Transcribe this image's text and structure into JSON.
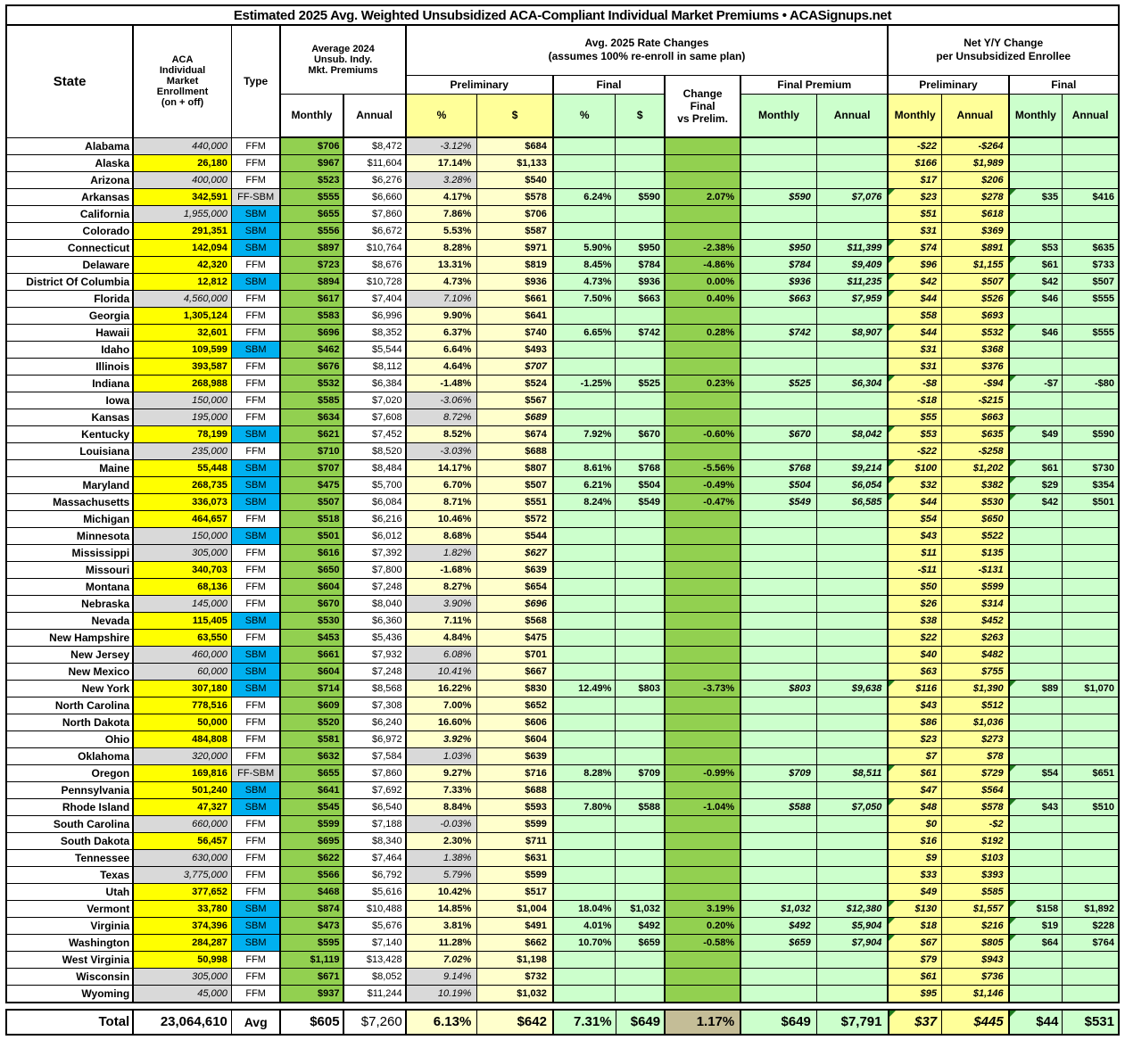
{
  "title": "Estimated 2025 Avg. Weighted Unsubsidized ACA-Compliant Individual Market Premiums • ACASignups.net",
  "headers": {
    "state": "State",
    "enrollment": "ACA\nIndividual\nMarket\nEnrollment\n(on + off)",
    "type": "Type",
    "avg2024": "Average 2024\nUnsub. Indy.\nMkt. Premiums",
    "rate_changes": "Avg. 2025 Rate Changes\n(assumes 100% re-enroll in same plan)",
    "net_yy": "Net Y/Y Change\nper Unsubsidized Enrollee",
    "preliminary": "Preliminary",
    "final": "Final",
    "final_premium": "Final Premium",
    "change_final": "Change\nFinal\nvs Prelim.",
    "monthly": "Monthly",
    "annual": "Annual",
    "pct": "%",
    "dollar": "$"
  },
  "colors": {
    "actual_yellow": "#FFFF00",
    "pale_yellow": "#FFFFCC",
    "mid_yellow": "#FFFF99",
    "pale_green": "#CCFFCC",
    "medium_green": "#92D050",
    "sbm_blue": "#00B0F0",
    "estimate_gray": "#D9D9D9",
    "total_change_tan": "#C4BD97",
    "note_triangle_green": "#1e7a1e"
  },
  "rows": [
    {
      "state": "Alabama",
      "enroll": "440,000",
      "est": true,
      "type": "FFM",
      "m24": "$706",
      "a24": "$8,472",
      "pp": "-3.12%",
      "pps": "g",
      "pd": "$684",
      "npm": "-$22",
      "npa": "-$264"
    },
    {
      "state": "Alaska",
      "enroll": "26,180",
      "type": "FFM",
      "m24": "$967",
      "a24": "$11,604",
      "pp": "17.14%",
      "pps": "b",
      "pd": "$1,133",
      "npm": "$166",
      "npa": "$1,989"
    },
    {
      "state": "Arizona",
      "enroll": "400,000",
      "est": true,
      "type": "FFM",
      "m24": "$523",
      "a24": "$6,276",
      "pp": "3.28%",
      "pps": "g",
      "pd": "$540",
      "npm": "$17",
      "npa": "$206"
    },
    {
      "state": "Arkansas",
      "enroll": "342,591",
      "type": "FF-SBM",
      "m24": "$555",
      "a24": "$6,660",
      "pp": "4.17%",
      "pps": "b",
      "pd": "$578",
      "fp": "6.24%",
      "fd": "$590",
      "chg": "2.07%",
      "fpm": "$590",
      "fpa": "$7,076",
      "npm": "$23",
      "npa": "$278",
      "nfm": "$35",
      "nfa": "$416"
    },
    {
      "state": "California",
      "enroll": "1,955,000",
      "est": true,
      "type": "SBM",
      "m24": "$655",
      "a24": "$7,860",
      "pp": "7.86%",
      "pps": "b",
      "pd": "$706",
      "npm": "$51",
      "npa": "$618"
    },
    {
      "state": "Colorado",
      "enroll": "291,351",
      "type": "SBM",
      "m24": "$556",
      "a24": "$6,672",
      "pp": "5.53%",
      "pps": "b",
      "pd": "$587",
      "npm": "$31",
      "npa": "$369"
    },
    {
      "state": "Connecticut",
      "enroll": "142,094",
      "type": "SBM",
      "m24": "$897",
      "a24": "$10,764",
      "pp": "8.28%",
      "pps": "b",
      "pd": "$971",
      "fp": "5.90%",
      "fd": "$950",
      "chg": "-2.38%",
      "fpm": "$950",
      "fpa": "$11,399",
      "npm": "$74",
      "npa": "$891",
      "nfm": "$53",
      "nfa": "$635"
    },
    {
      "state": "Delaware",
      "enroll": "42,320",
      "type": "FFM",
      "m24": "$723",
      "a24": "$8,676",
      "pp": "13.31%",
      "pps": "b",
      "pd": "$819",
      "fp": "8.45%",
      "fd": "$784",
      "chg": "-4.86%",
      "fpm": "$784",
      "fpa": "$9,409",
      "npm": "$96",
      "npa": "$1,155",
      "nfm": "$61",
      "nfa": "$733"
    },
    {
      "state": "District Of Columbia",
      "enroll": "12,812",
      "type": "SBM",
      "m24": "$894",
      "a24": "$10,728",
      "pp": "4.73%",
      "pps": "b",
      "pd": "$936",
      "fp": "4.73%",
      "fd": "$936",
      "chg": "0.00%",
      "fpm": "$936",
      "fpa": "$11,235",
      "npm": "$42",
      "npa": "$507",
      "nfm": "$42",
      "nfa": "$507"
    },
    {
      "state": "Florida",
      "enroll": "4,560,000",
      "est": true,
      "type": "FFM",
      "m24": "$617",
      "a24": "$7,404",
      "pp": "7.10%",
      "pps": "g",
      "pd": "$661",
      "fp": "7.50%",
      "fd": "$663",
      "chg": "0.40%",
      "fpm": "$663",
      "fpa": "$7,959",
      "npm": "$44",
      "npa": "$526",
      "nfm": "$46",
      "nfa": "$555"
    },
    {
      "state": "Georgia",
      "enroll": "1,305,124",
      "type": "FFM",
      "m24": "$583",
      "a24": "$6,996",
      "pp": "9.90%",
      "pps": "b",
      "pd": "$641",
      "npm": "$58",
      "npa": "$693"
    },
    {
      "state": "Hawaii",
      "enroll": "32,601",
      "type": "FFM",
      "m24": "$696",
      "a24": "$8,352",
      "pp": "6.37%",
      "pps": "b",
      "pd": "$740",
      "fp": "6.65%",
      "fd": "$742",
      "chg": "0.28%",
      "fpm": "$742",
      "fpa": "$8,907",
      "npm": "$44",
      "npa": "$532",
      "nfm": "$46",
      "nfa": "$555"
    },
    {
      "state": "Idaho",
      "enroll": "109,599",
      "type": "SBM",
      "m24": "$462",
      "a24": "$5,544",
      "pp": "6.64%",
      "pps": "b",
      "pd": "$493",
      "npm": "$31",
      "npa": "$368"
    },
    {
      "state": "Illinois",
      "enroll": "393,587",
      "type": "FFM",
      "m24": "$676",
      "a24": "$8,112",
      "pp": "4.64%",
      "pps": "b",
      "pd": "$707",
      "pdi": true,
      "npm": "$31",
      "npa": "$376"
    },
    {
      "state": "Indiana",
      "enroll": "268,988",
      "type": "FFM",
      "m24": "$532",
      "a24": "$6,384",
      "pp": "-1.48%",
      "pps": "b",
      "pd": "$524",
      "fp": "-1.25%",
      "fd": "$525",
      "chg": "0.23%",
      "fpm": "$525",
      "fpa": "$6,304",
      "npm": "-$8",
      "npa": "-$94",
      "nfm": "-$7",
      "nfa": "-$80"
    },
    {
      "state": "Iowa",
      "enroll": "150,000",
      "est": true,
      "type": "FFM",
      "m24": "$585",
      "a24": "$7,020",
      "pp": "-3.06%",
      "pps": "g",
      "pd": "$567",
      "npm": "-$18",
      "npa": "-$215"
    },
    {
      "state": "Kansas",
      "enroll": "195,000",
      "est": true,
      "type": "FFM",
      "m24": "$634",
      "a24": "$7,608",
      "pp": "8.72%",
      "pps": "g",
      "pd": "$689",
      "pdi": true,
      "npm": "$55",
      "npa": "$663"
    },
    {
      "state": "Kentucky",
      "enroll": "78,199",
      "type": "SBM",
      "m24": "$621",
      "a24": "$7,452",
      "pp": "8.52%",
      "pps": "b",
      "pd": "$674",
      "fp": "7.92%",
      "fd": "$670",
      "chg": "-0.60%",
      "fpm": "$670",
      "fpa": "$8,042",
      "npm": "$53",
      "npa": "$635",
      "nfm": "$49",
      "nfa": "$590"
    },
    {
      "state": "Louisiana",
      "enroll": "235,000",
      "est": true,
      "type": "FFM",
      "m24": "$710",
      "a24": "$8,520",
      "pp": "-3.03%",
      "pps": "g",
      "pd": "$688",
      "npm": "-$22",
      "npa": "-$258"
    },
    {
      "state": "Maine",
      "enroll": "55,448",
      "type": "SBM",
      "m24": "$707",
      "a24": "$8,484",
      "pp": "14.17%",
      "pps": "b",
      "pd": "$807",
      "fp": "8.61%",
      "fd": "$768",
      "chg": "-5.56%",
      "fpm": "$768",
      "fpa": "$9,214",
      "npm": "$100",
      "npa": "$1,202",
      "nfm": "$61",
      "nfa": "$730"
    },
    {
      "state": "Maryland",
      "enroll": "268,735",
      "type": "SBM",
      "m24": "$475",
      "a24": "$5,700",
      "pp": "6.70%",
      "pps": "b",
      "pd": "$507",
      "fp": "6.21%",
      "fd": "$504",
      "chg": "-0.49%",
      "fpm": "$504",
      "fpa": "$6,054",
      "npm": "$32",
      "npa": "$382",
      "nfm": "$29",
      "nfa": "$354"
    },
    {
      "state": "Massachusetts",
      "enroll": "336,073",
      "type": "SBM",
      "m24": "$507",
      "a24": "$6,084",
      "pp": "8.71%",
      "pps": "b",
      "pd": "$551",
      "fp": "8.24%",
      "fd": "$549",
      "chg": "-0.47%",
      "fpm": "$549",
      "fpa": "$6,585",
      "npm": "$44",
      "npa": "$530",
      "nfm": "$42",
      "nfa": "$501"
    },
    {
      "state": "Michigan",
      "enroll": "464,657",
      "type": "FFM",
      "m24": "$518",
      "a24": "$6,216",
      "pp": "10.46%",
      "pps": "b",
      "pd": "$572",
      "npm": "$54",
      "npa": "$650"
    },
    {
      "state": "Minnesota",
      "enroll": "150,000",
      "est": true,
      "type": "SBM",
      "m24": "$501",
      "a24": "$6,012",
      "pp": "8.68%",
      "pps": "b",
      "pd": "$544",
      "npm": "$43",
      "npa": "$522"
    },
    {
      "state": "Mississippi",
      "enroll": "305,000",
      "est": true,
      "type": "FFM",
      "m24": "$616",
      "a24": "$7,392",
      "pp": "1.82%",
      "pps": "g",
      "pd": "$627",
      "pdi": true,
      "npm": "$11",
      "npa": "$135"
    },
    {
      "state": "Missouri",
      "enroll": "340,703",
      "type": "FFM",
      "m24": "$650",
      "a24": "$7,800",
      "pp": "-1.68%",
      "pps": "b",
      "pd": "$639",
      "npm": "-$11",
      "npa": "-$131"
    },
    {
      "state": "Montana",
      "enroll": "68,136",
      "type": "FFM",
      "m24": "$604",
      "a24": "$7,248",
      "pp": "8.27%",
      "pps": "b",
      "pd": "$654",
      "npm": "$50",
      "npa": "$599"
    },
    {
      "state": "Nebraska",
      "enroll": "145,000",
      "est": true,
      "type": "FFM",
      "m24": "$670",
      "a24": "$8,040",
      "pp": "3.90%",
      "pps": "g",
      "pd": "$696",
      "pdi": true,
      "npm": "$26",
      "npa": "$314"
    },
    {
      "state": "Nevada",
      "enroll": "115,405",
      "type": "SBM",
      "m24": "$530",
      "a24": "$6,360",
      "pp": "7.11%",
      "pps": "b",
      "pd": "$568",
      "npm": "$38",
      "npa": "$452"
    },
    {
      "state": "New Hampshire",
      "enroll": "63,550",
      "type": "FFM",
      "m24": "$453",
      "a24": "$5,436",
      "pp": "4.84%",
      "pps": "b",
      "pd": "$475",
      "npm": "$22",
      "npa": "$263"
    },
    {
      "state": "New Jersey",
      "enroll": "460,000",
      "est": true,
      "type": "SBM",
      "m24": "$661",
      "a24": "$7,932",
      "pp": "6.08%",
      "pps": "g",
      "pd": "$701",
      "npm": "$40",
      "npa": "$482"
    },
    {
      "state": "New Mexico",
      "enroll": "60,000",
      "est": true,
      "type": "SBM",
      "m24": "$604",
      "a24": "$7,248",
      "pp": "10.41%",
      "pps": "g",
      "pd": "$667",
      "npm": "$63",
      "npa": "$755"
    },
    {
      "state": "New York",
      "enroll": "307,180",
      "type": "SBM",
      "m24": "$714",
      "a24": "$8,568",
      "pp": "16.22%",
      "pps": "b",
      "pd": "$830",
      "fp": "12.49%",
      "fd": "$803",
      "chg": "-3.73%",
      "fpm": "$803",
      "fpa": "$9,638",
      "npm": "$116",
      "npa": "$1,390",
      "nfm": "$89",
      "nfa": "$1,070"
    },
    {
      "state": "North Carolina",
      "enroll": "778,516",
      "type": "FFM",
      "m24": "$609",
      "a24": "$7,308",
      "pp": "7.00%",
      "pps": "b",
      "pd": "$652",
      "npm": "$43",
      "npa": "$512"
    },
    {
      "state": "North Dakota",
      "enroll": "50,000",
      "type": "FFM",
      "m24": "$520",
      "a24": "$6,240",
      "pp": "16.60%",
      "pps": "b",
      "pd": "$606",
      "npm": "$86",
      "npa": "$1,036"
    },
    {
      "state": "Ohio",
      "enroll": "484,808",
      "type": "FFM",
      "m24": "$581",
      "a24": "$6,972",
      "pp": "3.92%",
      "pps": "yi",
      "pd": "$604",
      "npm": "$23",
      "npa": "$273"
    },
    {
      "state": "Oklahoma",
      "enroll": "320,000",
      "est": true,
      "type": "FFM",
      "m24": "$632",
      "a24": "$7,584",
      "pp": "1.03%",
      "pps": "g",
      "pd": "$639",
      "npm": "$7",
      "npa": "$78"
    },
    {
      "state": "Oregon",
      "enroll": "169,816",
      "type": "FF-SBM",
      "m24": "$655",
      "a24": "$7,860",
      "pp": "9.27%",
      "pps": "b",
      "pd": "$716",
      "fp": "8.28%",
      "fd": "$709",
      "chg": "-0.99%",
      "fpm": "$709",
      "fpa": "$8,511",
      "npm": "$61",
      "npa": "$729",
      "nfm": "$54",
      "nfa": "$651"
    },
    {
      "state": "Pennsylvania",
      "enroll": "501,240",
      "type": "SBM",
      "m24": "$641",
      "a24": "$7,692",
      "pp": "7.33%",
      "pps": "b",
      "pd": "$688",
      "npm": "$47",
      "npa": "$564"
    },
    {
      "state": "Rhode Island",
      "enroll": "47,327",
      "type": "SBM",
      "m24": "$545",
      "a24": "$6,540",
      "pp": "8.84%",
      "pps": "b",
      "pd": "$593",
      "fp": "7.80%",
      "fd": "$588",
      "chg": "-1.04%",
      "fpm": "$588",
      "fpa": "$7,050",
      "npm": "$48",
      "npa": "$578",
      "nfm": "$43",
      "nfa": "$510"
    },
    {
      "state": "South Carolina",
      "enroll": "660,000",
      "est": true,
      "type": "FFM",
      "m24": "$599",
      "a24": "$7,188",
      "pp": "-0.03%",
      "pps": "g",
      "pd": "$599",
      "npm": "$0",
      "npa": "-$2"
    },
    {
      "state": "South Dakota",
      "enroll": "56,457",
      "type": "FFM",
      "m24": "$695",
      "a24": "$8,340",
      "pp": "2.30%",
      "pps": "b",
      "pd": "$711",
      "npm": "$16",
      "npa": "$192"
    },
    {
      "state": "Tennessee",
      "enroll": "630,000",
      "est": true,
      "type": "FFM",
      "m24": "$622",
      "a24": "$7,464",
      "pp": "1.38%",
      "pps": "g",
      "pd": "$631",
      "npm": "$9",
      "npa": "$103"
    },
    {
      "state": "Texas",
      "enroll": "3,775,000",
      "est": true,
      "type": "FFM",
      "m24": "$566",
      "a24": "$6,792",
      "pp": "5.79%",
      "pps": "g",
      "pd": "$599",
      "npm": "$33",
      "npa": "$393"
    },
    {
      "state": "Utah",
      "enroll": "377,652",
      "type": "FFM",
      "m24": "$468",
      "a24": "$5,616",
      "pp": "10.42%",
      "pps": "b",
      "pd": "$517",
      "npm": "$49",
      "npa": "$585"
    },
    {
      "state": "Vermont",
      "enroll": "33,780",
      "type": "SBM",
      "m24": "$874",
      "a24": "$10,488",
      "pp": "14.85%",
      "pps": "b",
      "pd": "$1,004",
      "fp": "18.04%",
      "fd": "$1,032",
      "chg": "3.19%",
      "fpm": "$1,032",
      "fpa": "$12,380",
      "npm": "$130",
      "npa": "$1,557",
      "nfm": "$158",
      "nfa": "$1,892"
    },
    {
      "state": "Virginia",
      "enroll": "374,396",
      "type": "SBM",
      "m24": "$473",
      "a24": "$5,676",
      "pp": "3.81%",
      "pps": "b",
      "pd": "$491",
      "fp": "4.01%",
      "fd": "$492",
      "chg": "0.20%",
      "fpm": "$492",
      "fpa": "$5,904",
      "npm": "$18",
      "npa": "$216",
      "nfm": "$19",
      "nfa": "$228"
    },
    {
      "state": "Washington",
      "enroll": "284,287",
      "type": "SBM",
      "m24": "$595",
      "a24": "$7,140",
      "pp": "11.28%",
      "pps": "b",
      "pd": "$662",
      "fp": "10.70%",
      "fd": "$659",
      "chg": "-0.58%",
      "fpm": "$659",
      "fpa": "$7,904",
      "npm": "$67",
      "npa": "$805",
      "nfm": "$64",
      "nfa": "$764"
    },
    {
      "state": "West Virginia",
      "enroll": "50,998",
      "type": "FFM",
      "m24": "$1,119",
      "a24": "$13,428",
      "pp": "7.02%",
      "pps": "yi",
      "pd": "$1,198",
      "npm": "$79",
      "npa": "$943"
    },
    {
      "state": "Wisconsin",
      "enroll": "305,000",
      "est": true,
      "type": "FFM",
      "m24": "$671",
      "a24": "$8,052",
      "pp": "9.14%",
      "pps": "g",
      "pd": "$732",
      "npm": "$61",
      "npa": "$736"
    },
    {
      "state": "Wyoming",
      "enroll": "45,000",
      "est": true,
      "type": "FFM",
      "m24": "$937",
      "a24": "$11,244",
      "pp": "10.19%",
      "pps": "g",
      "pd": "$1,032",
      "npm": "$95",
      "npa": "$1,146"
    }
  ],
  "total": {
    "state": "Total",
    "enroll": "23,064,610",
    "type": "Avg",
    "m24": "$605",
    "a24": "$7,260",
    "pp": "6.13%",
    "pps": "b",
    "pd": "$642",
    "fp": "7.31%",
    "fd": "$649",
    "chg": "1.17%",
    "fpm": "$649",
    "fpa": "$7,791",
    "npm": "$37",
    "npa": "$445",
    "nfm": "$44",
    "nfa": "$531"
  }
}
